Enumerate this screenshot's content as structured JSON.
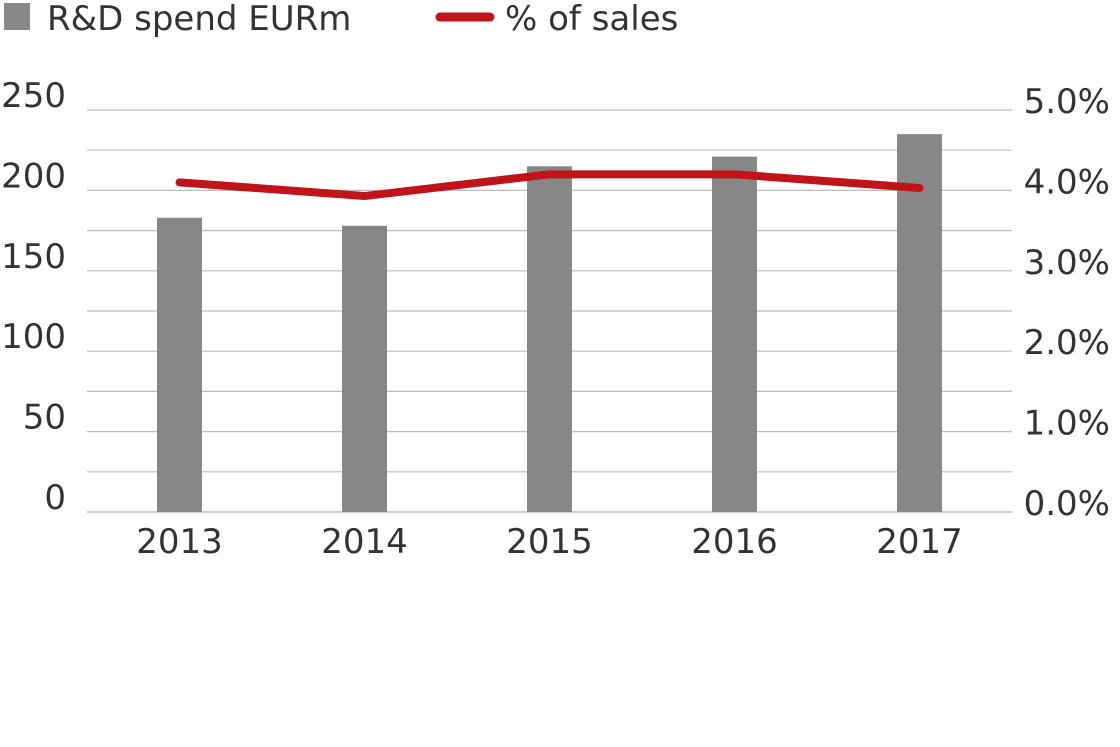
{
  "chart_data": {
    "type": "bar",
    "categories": [
      "2013",
      "2014",
      "2015",
      "2016",
      "2017"
    ],
    "series": [
      {
        "name": "R&D spend EURm",
        "type": "bar",
        "axis": "left",
        "color": "#878787",
        "values": [
          183,
          178,
          215,
          221,
          235
        ]
      },
      {
        "name": "% of sales",
        "type": "line",
        "axis": "right",
        "color": "#c0141a",
        "values": [
          4.1,
          3.93,
          4.2,
          4.2,
          4.03
        ]
      }
    ],
    "y_left": {
      "ylim": [
        0,
        250
      ],
      "ticks": [
        "0",
        "50",
        "100",
        "150",
        "200",
        "250"
      ]
    },
    "y_right": {
      "ylim": [
        0,
        5
      ],
      "ticks": [
        "0.0%",
        "1.0%",
        "2.0%",
        "3.0%",
        "4.0%",
        "5.0%"
      ]
    },
    "grid": true,
    "legend_position": "top-left",
    "title": "",
    "xlabel": "",
    "ylabel": ""
  }
}
